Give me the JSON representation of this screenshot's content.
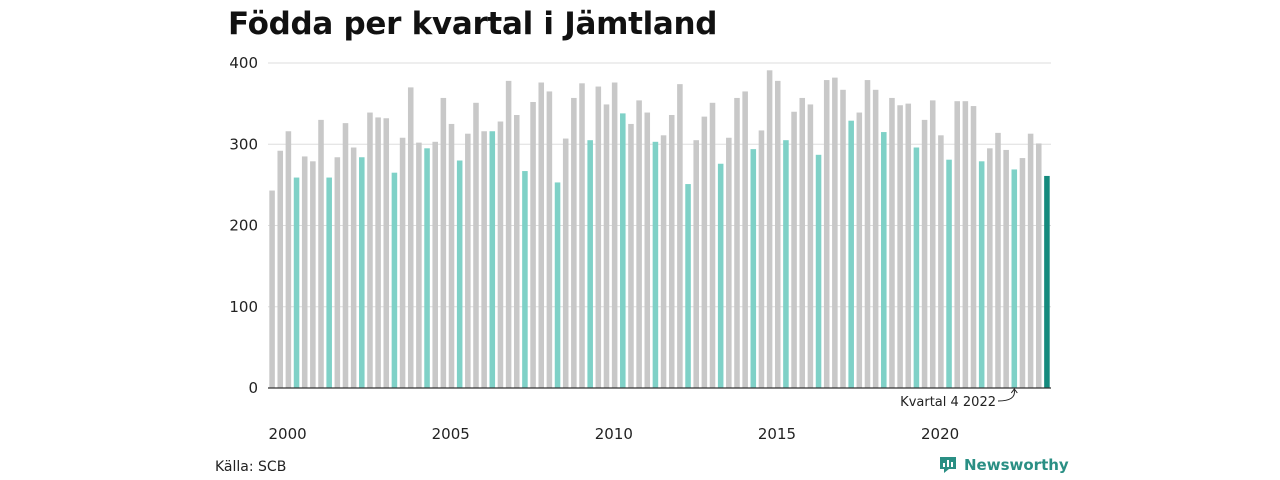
{
  "title": "Födda per kvartal i Jämtland",
  "source": "Källa: SCB",
  "brand": {
    "name": "Newsworthy",
    "icon": "newsworthy-logo-icon"
  },
  "colors": {
    "other_quarters": "#c8c8c8",
    "q4": "#7fd1c7",
    "highlight": "#158a7d",
    "grid": "#dddddd",
    "brand": "#2a8f84"
  },
  "chart_data": {
    "type": "bar",
    "title": "Födda per kvartal i Jämtland",
    "xlabel": "",
    "ylabel": "",
    "ylim": [
      0,
      400
    ],
    "yticks": [
      "0",
      "100",
      "200",
      "300",
      "400"
    ],
    "xticks": [
      "2000",
      "2005",
      "2010",
      "2015",
      "2020"
    ],
    "grid": true,
    "start_year": 2000,
    "values": [
      243,
      292,
      316,
      259,
      285,
      279,
      330,
      259,
      284,
      326,
      296,
      284,
      339,
      333,
      332,
      265,
      308,
      370,
      302,
      295,
      303,
      357,
      325,
      280,
      313,
      351,
      316,
      316,
      328,
      378,
      336,
      267,
      352,
      376,
      365,
      253,
      307,
      357,
      375,
      305,
      371,
      349,
      376,
      338,
      325,
      354,
      339,
      303,
      311,
      336,
      374,
      251,
      305,
      334,
      351,
      276,
      308,
      357,
      365,
      294,
      317,
      391,
      378,
      305,
      340,
      357,
      349,
      287,
      379,
      382,
      367,
      329,
      339,
      379,
      367,
      315,
      357,
      348,
      350,
      296,
      330,
      354,
      311,
      281,
      353,
      353,
      347,
      279,
      295,
      314,
      293,
      269,
      283,
      313,
      301,
      261
    ],
    "annotation": "Kvartal 4 2022"
  }
}
